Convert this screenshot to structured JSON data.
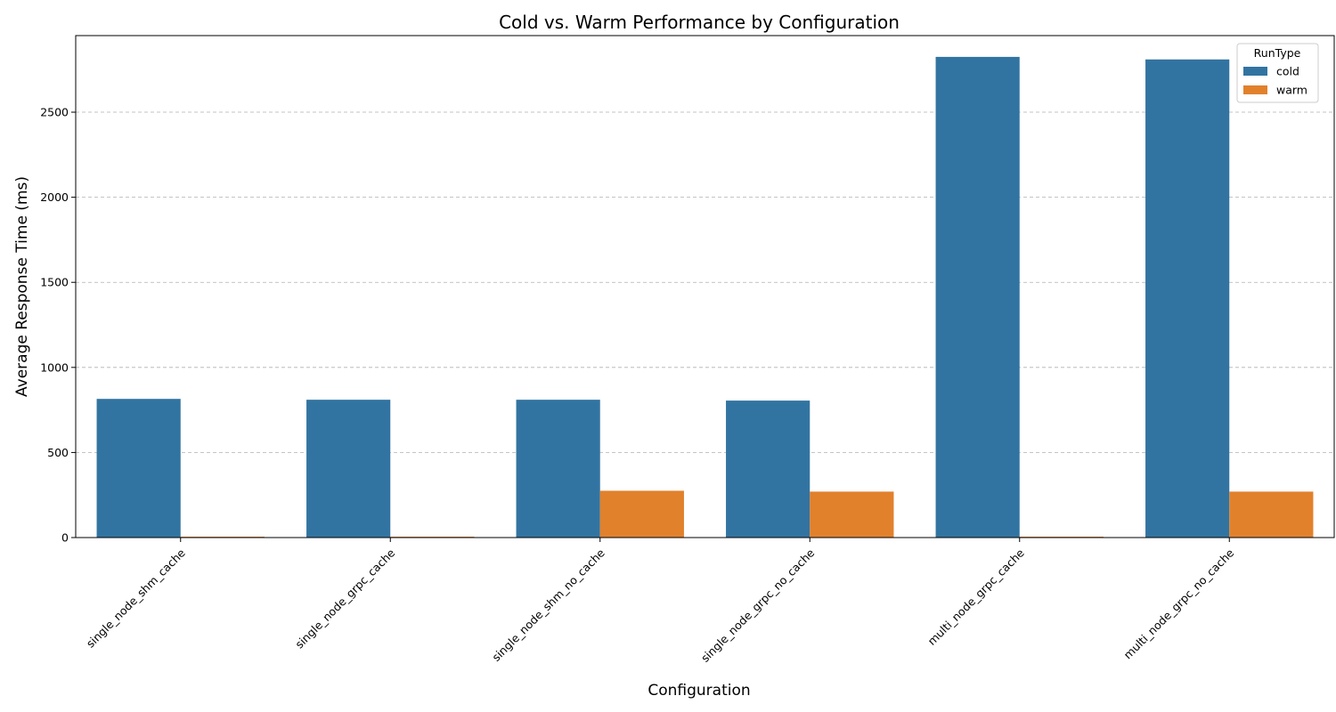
{
  "chart_data": {
    "type": "bar",
    "title": "Cold vs. Warm Performance by Configuration",
    "xlabel": "Configuration",
    "ylabel": "Average Response Time (ms)",
    "categories": [
      "single_node_shm_cache",
      "single_node_grpc_cache",
      "single_node_shm_no_cache",
      "single_node_grpc_no_cache",
      "multi_node_grpc_cache",
      "multi_node_grpc_no_cache"
    ],
    "series": [
      {
        "name": "cold",
        "color": "#3274a1",
        "values": [
          815,
          810,
          810,
          805,
          2825,
          2810
        ]
      },
      {
        "name": "warm",
        "color": "#e1812c",
        "values": [
          5,
          5,
          275,
          270,
          5,
          270
        ]
      }
    ],
    "ylim": [
      0,
      2950
    ],
    "yticks": [
      0,
      500,
      1000,
      1500,
      2000,
      2500
    ],
    "grid": "y-dashed",
    "legend": {
      "title": "RunType",
      "placement": "top-right"
    }
  }
}
